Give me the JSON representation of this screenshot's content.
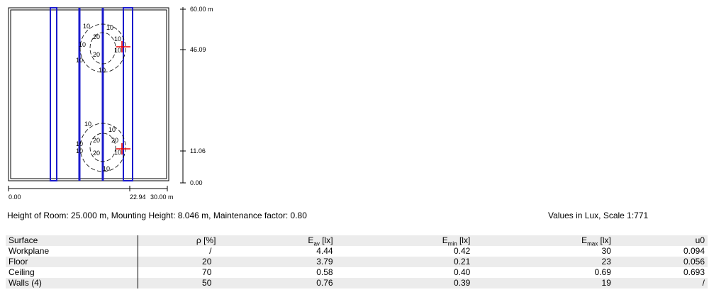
{
  "plan": {
    "contour_labels": [
      "10",
      "10",
      "20",
      "10",
      "10",
      "20",
      "10",
      "10",
      "10",
      "10",
      "10",
      "20",
      "20",
      "10",
      "10",
      "20",
      "10",
      "10"
    ],
    "y_axis": [
      "60.00 m",
      "46.09",
      "11.06",
      "0.00"
    ],
    "x_axis": [
      "0.00",
      "22.94",
      "30.00 m"
    ]
  },
  "caption": {
    "left": "Height of Room: 25.000 m, Mounting Height: 8.046 m, Maintenance factor: 0.80",
    "right": "Values in Lux, Scale 1:771"
  },
  "table": {
    "header": [
      {
        "text": "Surface"
      },
      {
        "text": "ρ [%]"
      },
      {
        "text": "E",
        "sub": "av",
        "unit": " [lx]"
      },
      {
        "text": "E",
        "sub": "min",
        "unit": " [lx]"
      },
      {
        "text": "E",
        "sub": "max",
        "unit": " [lx]"
      },
      {
        "text": "u0"
      }
    ],
    "rows": [
      [
        "Workplane",
        "/",
        "4.44",
        "0.42",
        "30",
        "0.094"
      ],
      [
        "Floor",
        "20",
        "3.79",
        "0.21",
        "23",
        "0.056"
      ],
      [
        "Ceiling",
        "70",
        "0.58",
        "0.40",
        "0.69",
        "0.693"
      ],
      [
        "Walls (4)",
        "50",
        "0.76",
        "0.39",
        "19",
        "/"
      ]
    ]
  }
}
